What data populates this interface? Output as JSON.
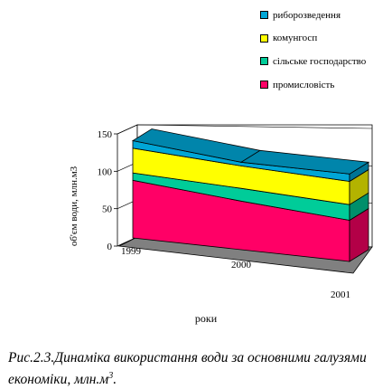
{
  "chart_data": {
    "type": "area",
    "subtype": "3d-stacked",
    "categories": [
      "1999",
      "2000",
      "2001"
    ],
    "ylabel": "об'єм води, млн.м3",
    "xlabel": "роки",
    "ylim": [
      0,
      150
    ],
    "y_ticks": [
      "0",
      "50",
      "100",
      "150"
    ],
    "legend_position": "top-right",
    "series": [
      {
        "name": "промисловість",
        "color": "#ff0066",
        "values": [
          77,
          65,
          55
        ]
      },
      {
        "name": "сільське господарство",
        "color": "#00cc99",
        "values": [
          10,
          17,
          21
        ]
      },
      {
        "name": "комунгосп",
        "color": "#ffff00",
        "values": [
          33,
          30,
          31
        ]
      },
      {
        "name": "риборозведення",
        "color": "#00a6d6",
        "values": [
          10,
          5,
          10
        ]
      }
    ],
    "legend_order": [
      "риборозведення",
      "комунгосп",
      "сільське господарство",
      "промисловість"
    ]
  },
  "caption": {
    "prefix": "Рис.2.3.Динаміка використання води за основними галузями економіки, млн.м",
    "sup": "3",
    "suffix": "."
  }
}
